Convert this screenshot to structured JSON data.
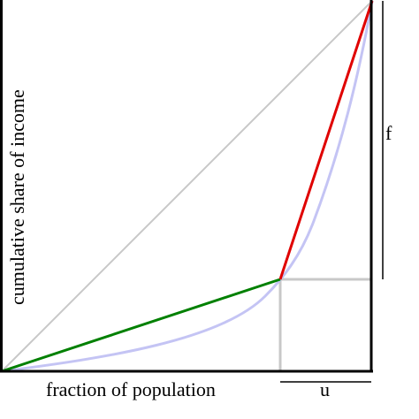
{
  "labels": {
    "x_axis": "fraction of population",
    "y_axis": "cumulative share of income",
    "u": "u",
    "f": "f"
  },
  "colors": {
    "axis": "#000000",
    "equality_line": "#c8c8c8",
    "lorenz_curve": "#c4c4f4",
    "lower_segment": "#008000",
    "upper_segment": "#e00000",
    "guide_lines": "#c8c8c8"
  }
}
